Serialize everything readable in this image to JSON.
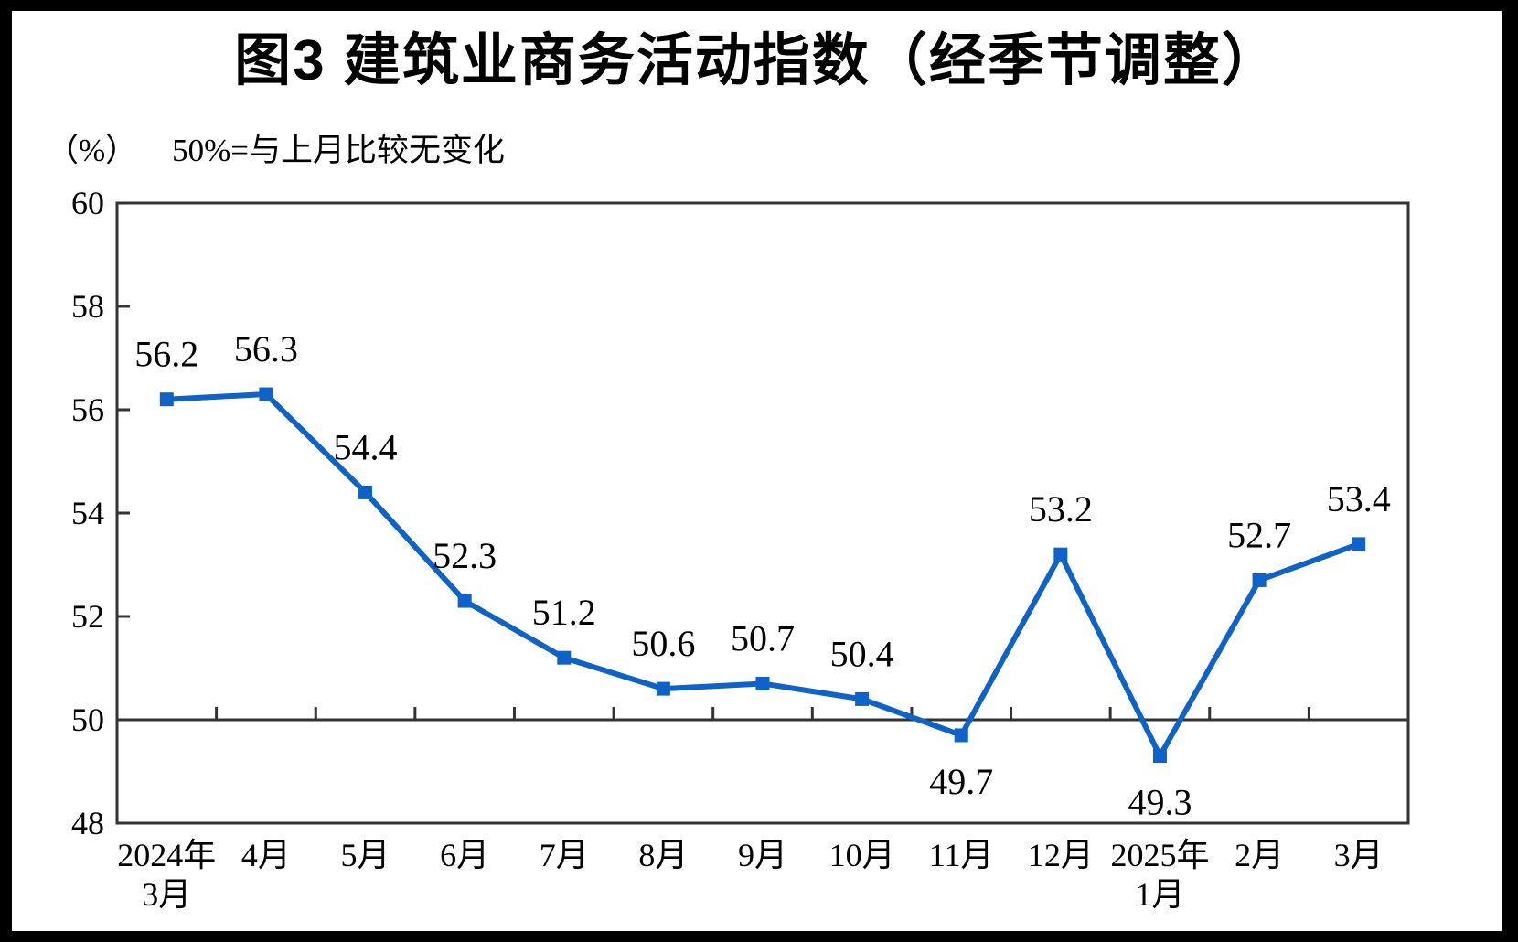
{
  "chart_data": {
    "type": "line",
    "title": "图3  建筑业商务活动指数（经季节调整）",
    "unit_label": "（%）",
    "note": "50%=与上月比较无变化",
    "categories": [
      [
        "2024年",
        "3月"
      ],
      [
        "4月"
      ],
      [
        "5月"
      ],
      [
        "6月"
      ],
      [
        "7月"
      ],
      [
        "8月"
      ],
      [
        "9月"
      ],
      [
        "10月"
      ],
      [
        "11月"
      ],
      [
        "12月"
      ],
      [
        "2025年",
        "1月"
      ],
      [
        "2月"
      ],
      [
        "3月"
      ]
    ],
    "values": [
      56.2,
      56.3,
      54.4,
      52.3,
      51.2,
      50.6,
      50.7,
      50.4,
      49.7,
      53.2,
      49.3,
      52.7,
      53.4
    ],
    "ylim": [
      48,
      60
    ],
    "ytick_step": 2,
    "yticks": [
      48,
      50,
      52,
      54,
      56,
      58,
      60
    ],
    "reference_line": 50,
    "grid": "off",
    "legend": "none",
    "xlabel": "",
    "ylabel": "",
    "line_color": "#0e62c8",
    "marker": "square",
    "axis_color": "#333333",
    "label_color": "#000000"
  }
}
